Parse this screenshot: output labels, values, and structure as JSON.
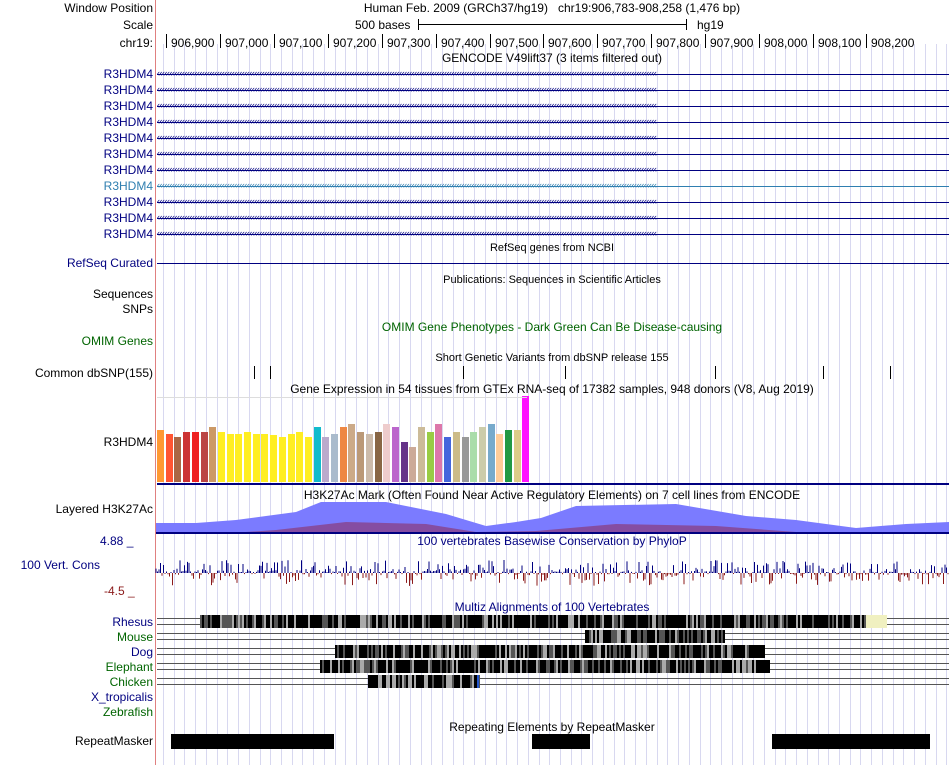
{
  "header": {
    "window_position_label": "Window Position",
    "window_position_text": "Human Feb. 2009 (GRCh37/hg19)   chr19:906,783-908,258 (1,476 bp)",
    "scale_label": "Scale",
    "scale_text": "500 bases",
    "scale_assembly": "hg19",
    "chrom_label": "chr19:",
    "ruler_ticks": [
      "906,900",
      "907,000",
      "907,100",
      "907,200",
      "907,300",
      "907,400",
      "907,500",
      "907,600",
      "907,700",
      "907,800",
      "907,900",
      "908,000",
      "908,100",
      "908,200"
    ]
  },
  "gencode": {
    "title": "GENCODE V49lift37 (3 items filtered out)",
    "genes": [
      "R3HDM4",
      "R3HDM4",
      "R3HDM4",
      "R3HDM4",
      "R3HDM4",
      "R3HDM4",
      "R3HDM4",
      "R3HDM4",
      "R3HDM4",
      "R3HDM4",
      "R3HDM4"
    ],
    "highlight_index": 7
  },
  "refseq": {
    "title": "RefSeq genes from NCBI",
    "label": "RefSeq Curated"
  },
  "publications": {
    "title": "Publications: Sequences in Scientific Articles",
    "label1": "Sequences",
    "label2": "SNPs"
  },
  "omim": {
    "title": "OMIM Gene Phenotypes - Dark Green Can Be Disease-causing",
    "label": "OMIM Genes"
  },
  "dbsnp": {
    "title": "Short Genetic Variants from dbSNP release 155",
    "label": "Common dbSNP(155)"
  },
  "gtex": {
    "title": "Gene Expression in 54 tissues from GTEx RNA-seq of 17382 samples, 948 donors (V8, Aug 2019)",
    "label": "R3HDM4"
  },
  "h3k27ac": {
    "title": "H3K27Ac Mark (Often Found Near Active Regulatory Elements) on 7 cell lines from ENCODE",
    "label": "Layered H3K27Ac"
  },
  "conservation": {
    "title": "100 vertebrates Basewise Conservation by PhyloP",
    "label": "100 Vert. Cons",
    "max": "4.88 _",
    "min": "-4.5 _"
  },
  "multiz": {
    "title": "Multiz Alignments of 100 Vertebrates",
    "species": [
      "Rhesus",
      "Mouse",
      "Dog",
      "Elephant",
      "Chicken",
      "X_tropicalis",
      "Zebrafish"
    ]
  },
  "repeatmasker": {
    "title": "Repeating Elements by RepeatMasker",
    "label": "RepeatMasker"
  },
  "colors": {
    "gene": "#000080",
    "highlight": "#2f7fb0",
    "omim_green": "#006400",
    "h3k27ac_fill": "#7b7bff",
    "cons_pos": "#000080",
    "cons_neg": "#8b1a1a"
  }
}
